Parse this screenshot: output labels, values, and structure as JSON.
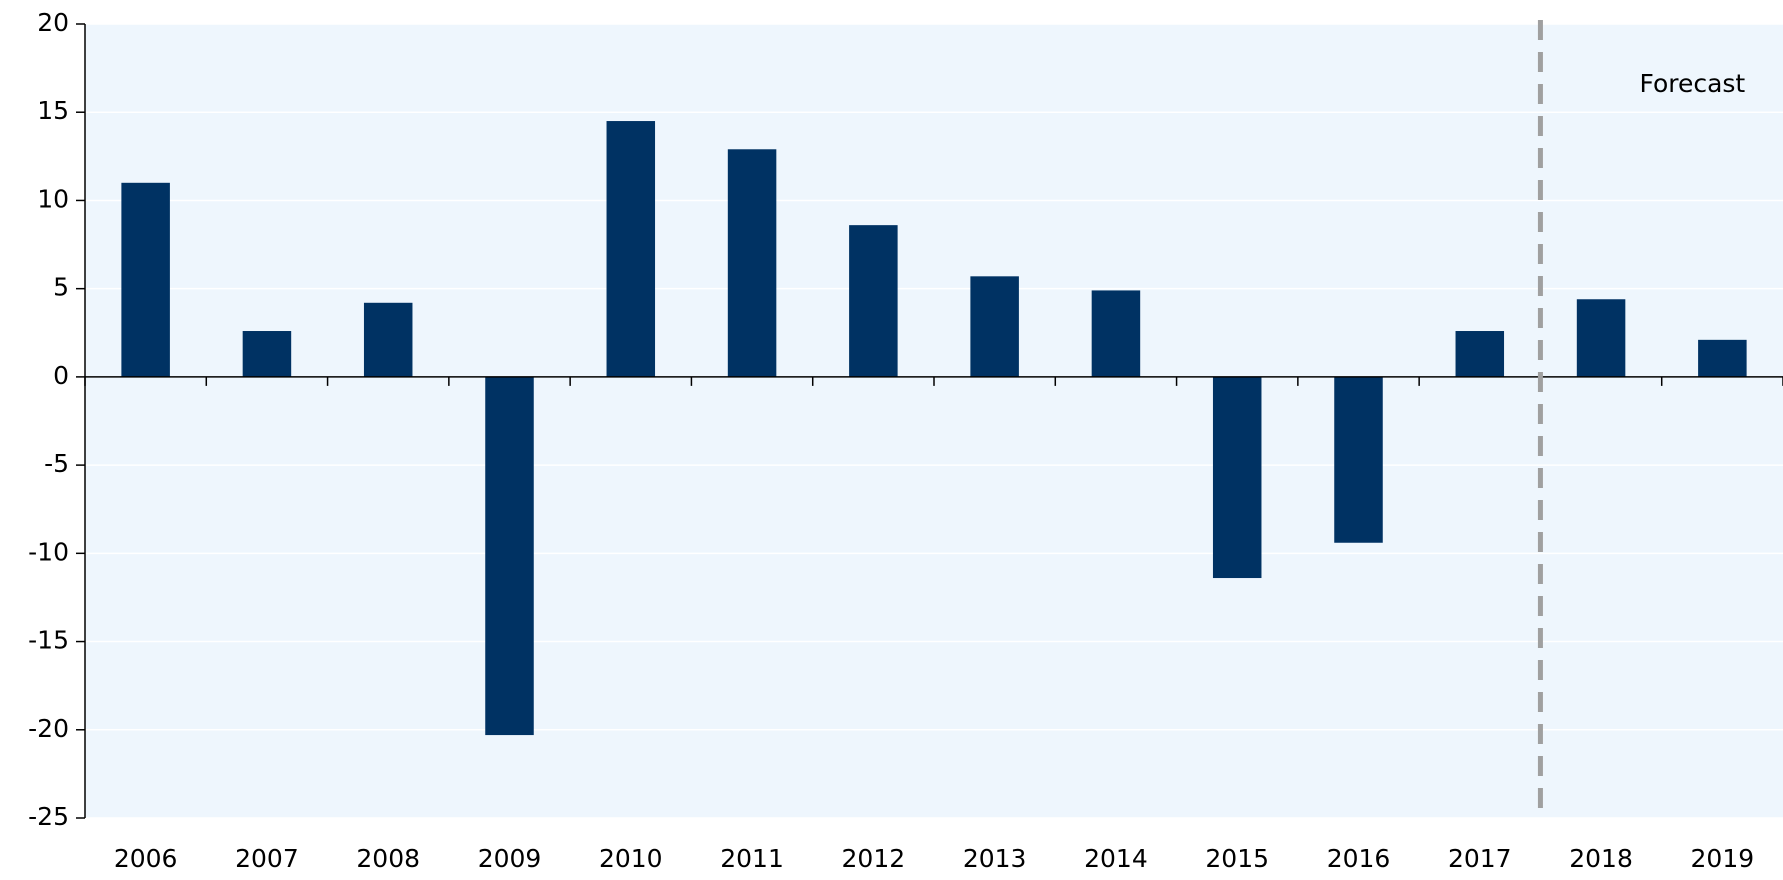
{
  "chart_data": {
    "type": "bar",
    "categories": [
      "2006",
      "2007",
      "2008",
      "2009",
      "2010",
      "2011",
      "2012",
      "2013",
      "2014",
      "2015",
      "2016",
      "2017",
      "2018",
      "2019"
    ],
    "values": [
      11.0,
      2.6,
      4.2,
      -20.3,
      14.5,
      12.9,
      8.6,
      5.7,
      4.9,
      -11.4,
      -9.4,
      2.6,
      4.4,
      2.1
    ],
    "color": "#003263",
    "ylim": [
      -25,
      20
    ],
    "yticks": [
      -25,
      -20,
      -15,
      -10,
      -5,
      0,
      5,
      10,
      15,
      20
    ],
    "grid": true,
    "annotation": "Forecast"
  }
}
